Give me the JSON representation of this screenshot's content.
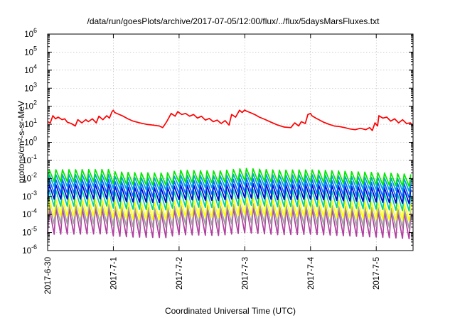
{
  "chart_data": {
    "type": "line",
    "title": "/data/run/goesPlots/archive/2017-07-05/12:00/flux/../flux/5daysMarsFluxes.txt",
    "xlabel": "Coordinated Universal Time (UTC)",
    "ylabel": "protons/cm²-s-sr-MeV",
    "yscale": "log",
    "ylim": [
      1e-06,
      1000000.0
    ],
    "xlim": [
      0,
      5.56
    ],
    "grid": true,
    "legend": "none",
    "x_ticks": [
      {
        "x": 0,
        "label": "2017-6-30"
      },
      {
        "x": 1,
        "label": "2017-7-1"
      },
      {
        "x": 2,
        "label": "2017-7-2"
      },
      {
        "x": 3,
        "label": "2017-7-3"
      },
      {
        "x": 4,
        "label": "2017-7-4"
      },
      {
        "x": 5,
        "label": "2017-7-5"
      }
    ],
    "y_ticks": [
      {
        "exp": "-6",
        "value": 1e-06
      },
      {
        "exp": "-5",
        "value": 1e-05
      },
      {
        "exp": "-4",
        "value": 0.0001
      },
      {
        "exp": "-3",
        "value": 0.001
      },
      {
        "exp": "-2",
        "value": 0.01
      },
      {
        "exp": "-1",
        "value": 0.1
      },
      {
        "exp": "0",
        "value": 1
      },
      {
        "exp": "1",
        "value": 10
      },
      {
        "exp": "2",
        "value": 100
      },
      {
        "exp": "3",
        "value": 1000
      },
      {
        "exp": "4",
        "value": 10000
      },
      {
        "exp": "5",
        "value": 100000
      },
      {
        "exp": "6",
        "value": 1000000
      }
    ],
    "series": [
      {
        "color": "#ff0000",
        "x": [
          0,
          0.04,
          0.08,
          0.12,
          0.16,
          0.22,
          0.26,
          0.3,
          0.36,
          0.42,
          0.46,
          0.52,
          0.58,
          0.62,
          0.68,
          0.74,
          0.78,
          0.84,
          0.9,
          0.94,
          0.98,
          1.0,
          1.02,
          1.08,
          1.15,
          1.22,
          1.3,
          1.4,
          1.5,
          1.6,
          1.7,
          1.75,
          1.8,
          1.82,
          1.88,
          1.94,
          1.98,
          2.04,
          2.1,
          2.16,
          2.22,
          2.28,
          2.34,
          2.4,
          2.46,
          2.52,
          2.58,
          2.64,
          2.7,
          2.76,
          2.8,
          2.86,
          2.92,
          2.96,
          3.0,
          3.02,
          3.08,
          3.15,
          3.22,
          3.3,
          3.4,
          3.5,
          3.6,
          3.7,
          3.76,
          3.82,
          3.86,
          3.92,
          3.96,
          4.0,
          4.02,
          4.08,
          4.14,
          4.2,
          4.28,
          4.36,
          4.44,
          4.52,
          4.6,
          4.68,
          4.76,
          4.84,
          4.9,
          4.94,
          4.98,
          5.02,
          5.04,
          5.1,
          5.16,
          5.22,
          5.28,
          5.34,
          5.4,
          5.46,
          5.52,
          5.56
        ],
        "y": [
          14,
          12,
          30,
          20,
          25,
          18,
          20,
          13,
          11,
          8,
          18,
          12,
          18,
          14,
          20,
          12,
          28,
          18,
          30,
          22,
          50,
          60,
          45,
          36,
          28,
          20,
          15,
          12,
          10,
          9,
          8,
          6.5,
          12,
          16,
          40,
          28,
          50,
          35,
          40,
          28,
          35,
          22,
          28,
          17,
          21,
          14,
          17,
          11,
          16,
          9,
          35,
          25,
          60,
          45,
          62,
          55,
          45,
          35,
          25,
          19,
          13,
          9,
          7,
          6.5,
          12,
          8,
          14,
          11,
          35,
          40,
          30,
          22,
          17,
          13,
          10,
          8,
          7.5,
          6.5,
          5.5,
          5,
          6,
          5,
          6.5,
          4.5,
          12,
          8,
          30,
          22,
          25,
          15,
          20,
          12,
          18,
          11,
          12,
          8
        ]
      },
      {
        "color": "#00e800",
        "base": 0.03,
        "trough": 0.0065,
        "trend": [
          [
            0,
            1.0
          ],
          [
            0.95,
            1.05
          ],
          [
            1.0,
            0.8
          ],
          [
            1.3,
            0.7
          ],
          [
            1.8,
            0.65
          ],
          [
            2.0,
            0.95
          ],
          [
            2.6,
            0.85
          ],
          [
            3.0,
            1.2
          ],
          [
            3.5,
            0.95
          ],
          [
            4.0,
            1.0
          ],
          [
            4.6,
            0.8
          ],
          [
            5.0,
            0.7
          ],
          [
            5.56,
            0.55
          ]
        ]
      },
      {
        "color": "#00a0e0",
        "base": 0.016,
        "trough": 0.0035,
        "trend": [
          [
            0,
            1.0
          ],
          [
            0.95,
            1.05
          ],
          [
            1.0,
            0.8
          ],
          [
            1.3,
            0.7
          ],
          [
            1.8,
            0.65
          ],
          [
            2.0,
            0.95
          ],
          [
            2.6,
            0.85
          ],
          [
            3.0,
            1.2
          ],
          [
            3.5,
            0.95
          ],
          [
            4.0,
            1.0
          ],
          [
            4.6,
            0.8
          ],
          [
            5.0,
            0.7
          ],
          [
            5.56,
            0.55
          ]
        ]
      },
      {
        "color": "#0066ff",
        "base": 0.0085,
        "trough": 0.0015,
        "trend": [
          [
            0,
            1.0
          ],
          [
            0.95,
            1.05
          ],
          [
            1.0,
            0.8
          ],
          [
            1.3,
            0.7
          ],
          [
            1.8,
            0.65
          ],
          [
            2.0,
            0.95
          ],
          [
            2.6,
            0.85
          ],
          [
            3.0,
            1.2
          ],
          [
            3.5,
            0.95
          ],
          [
            4.0,
            1.0
          ],
          [
            4.6,
            0.8
          ],
          [
            5.0,
            0.7
          ],
          [
            5.56,
            0.55
          ]
        ]
      },
      {
        "color": "#0000cc",
        "base": 0.0045,
        "trough": 0.0007,
        "trend": [
          [
            0,
            1.0
          ],
          [
            0.95,
            1.05
          ],
          [
            1.0,
            0.8
          ],
          [
            1.3,
            0.7
          ],
          [
            1.8,
            0.65
          ],
          [
            2.0,
            0.95
          ],
          [
            2.6,
            0.85
          ],
          [
            3.0,
            1.2
          ],
          [
            3.5,
            0.95
          ],
          [
            4.0,
            1.0
          ],
          [
            4.6,
            0.8
          ],
          [
            5.0,
            0.7
          ],
          [
            5.56,
            0.55
          ]
        ]
      },
      {
        "color": "#00d0a0",
        "base": 0.0022,
        "trough": 0.00028,
        "trend": [
          [
            0,
            1.0
          ],
          [
            0.95,
            1.05
          ],
          [
            1.0,
            0.8
          ],
          [
            1.3,
            0.7
          ],
          [
            1.8,
            0.65
          ],
          [
            2.0,
            0.95
          ],
          [
            2.6,
            0.85
          ],
          [
            3.0,
            1.2
          ],
          [
            3.5,
            0.95
          ],
          [
            4.0,
            1.0
          ],
          [
            4.6,
            0.8
          ],
          [
            5.0,
            0.7
          ],
          [
            5.56,
            0.55
          ]
        ]
      },
      {
        "color": "#ffff00",
        "base": 0.0007,
        "trough": 8e-05,
        "trend": [
          [
            0,
            1.0
          ],
          [
            0.95,
            1.05
          ],
          [
            1.0,
            0.8
          ],
          [
            1.3,
            0.7
          ],
          [
            1.8,
            0.65
          ],
          [
            2.0,
            0.95
          ],
          [
            2.6,
            0.85
          ],
          [
            3.0,
            1.2
          ],
          [
            3.5,
            0.95
          ],
          [
            4.0,
            1.0
          ],
          [
            4.6,
            0.8
          ],
          [
            5.0,
            0.7
          ],
          [
            5.56,
            0.55
          ]
        ]
      },
      {
        "color": "#a0a0a0",
        "base": 0.00035,
        "trough": 3e-05,
        "trend": [
          [
            0,
            1.0
          ],
          [
            0.95,
            1.05
          ],
          [
            1.0,
            0.8
          ],
          [
            1.3,
            0.7
          ],
          [
            1.8,
            0.65
          ],
          [
            2.0,
            0.95
          ],
          [
            2.6,
            0.85
          ],
          [
            3.0,
            1.2
          ],
          [
            3.5,
            0.95
          ],
          [
            4.0,
            1.0
          ],
          [
            4.6,
            0.8
          ],
          [
            5.0,
            0.7
          ],
          [
            5.56,
            0.55
          ]
        ]
      },
      {
        "color": "#b040a0",
        "base": 0.00022,
        "trough": 8e-06,
        "trend": [
          [
            0,
            1.0
          ],
          [
            0.95,
            1.05
          ],
          [
            1.0,
            0.8
          ],
          [
            1.3,
            0.7
          ],
          [
            1.8,
            0.65
          ],
          [
            2.0,
            0.95
          ],
          [
            2.6,
            0.85
          ],
          [
            3.0,
            1.2
          ],
          [
            3.5,
            0.95
          ],
          [
            4.0,
            1.0
          ],
          [
            4.6,
            0.8
          ],
          [
            5.0,
            0.7
          ],
          [
            5.56,
            0.55
          ]
        ]
      }
    ],
    "spike_period_days": 0.1
  }
}
